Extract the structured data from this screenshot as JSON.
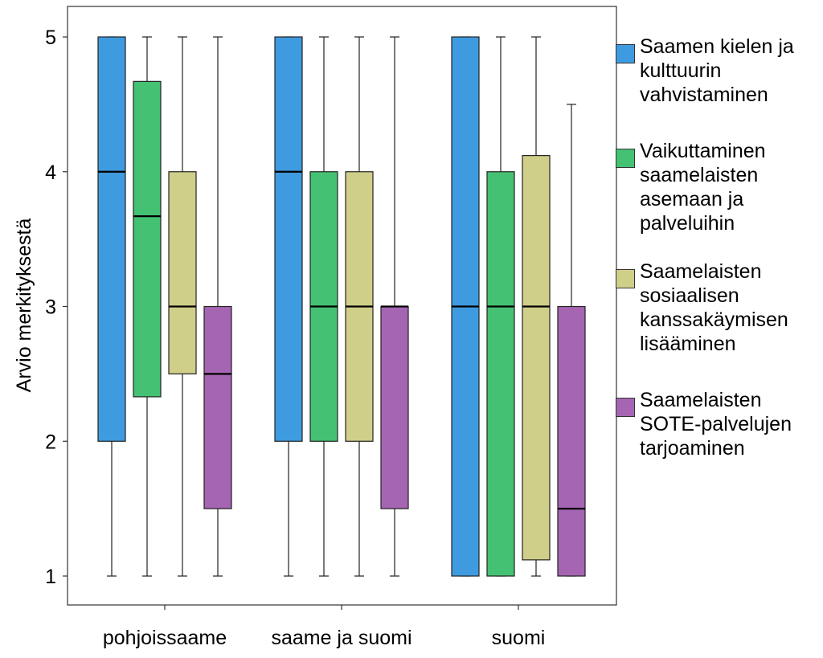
{
  "chart_data": {
    "type": "boxplot",
    "ylabel": "Arvio merkityksestä",
    "xlabel": "",
    "ylim": [
      1,
      5
    ],
    "yticks": [
      "1",
      "2",
      "3",
      "4",
      "5"
    ],
    "categories": [
      "pohjoissaame",
      "saame ja suomi",
      "suomi"
    ],
    "legend_position": "right",
    "series": [
      {
        "name": "Saamen kielen ja kulttuurin vahvistaminen",
        "color": "#3f9be0",
        "boxes": [
          {
            "min": 1,
            "q1": 2,
            "median": 4,
            "q3": 5,
            "max": 5
          },
          {
            "min": 1,
            "q1": 2,
            "median": 4,
            "q3": 5,
            "max": 5
          },
          {
            "min": 1,
            "q1": 1,
            "median": 3,
            "q3": 5,
            "max": 5
          }
        ]
      },
      {
        "name": "Vaikuttaminen saamelaisten asemaan ja palveluihin",
        "color": "#45c173",
        "boxes": [
          {
            "min": 1,
            "q1": 2.33,
            "median": 3.67,
            "q3": 4.67,
            "max": 5
          },
          {
            "min": 1,
            "q1": 2,
            "median": 3,
            "q3": 4,
            "max": 5
          },
          {
            "min": 1,
            "q1": 1,
            "median": 3,
            "q3": 4,
            "max": 5
          }
        ]
      },
      {
        "name": "Saamelaisten sosiaalisen kanssakäymisen lisääminen",
        "color": "#cfcf8a",
        "boxes": [
          {
            "min": 1,
            "q1": 2.5,
            "median": 3,
            "q3": 4,
            "max": 5
          },
          {
            "min": 1,
            "q1": 2,
            "median": 3,
            "q3": 4,
            "max": 5
          },
          {
            "min": 1,
            "q1": 1.12,
            "median": 3,
            "q3": 4.12,
            "max": 5
          }
        ]
      },
      {
        "name": "Saamelaisten SOTE-palvelujen tarjoaminen",
        "color": "#a565b2",
        "boxes": [
          {
            "min": 1,
            "q1": 1.5,
            "median": 2.5,
            "q3": 3,
            "max": 5
          },
          {
            "min": 1,
            "q1": 1.5,
            "median": 3,
            "q3": 3,
            "max": 5
          },
          {
            "min": 1,
            "q1": 1,
            "median": 1.5,
            "q3": 3,
            "max": 4.5
          }
        ]
      }
    ]
  }
}
